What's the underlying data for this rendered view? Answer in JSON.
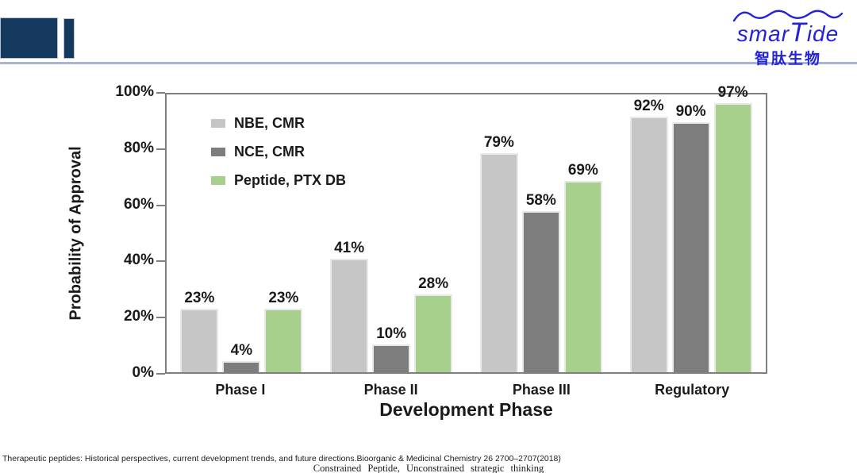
{
  "header": {
    "navy_color": "#15395f",
    "divider_color": "#a6b7cf"
  },
  "logo": {
    "color": "#2222dd",
    "name_part1": "smar",
    "name_part2": "T",
    "name_part3": "ide",
    "chinese": "智肽生物"
  },
  "chart_data": {
    "type": "bar",
    "title": "",
    "xlabel": "Development Phase",
    "ylabel": "Probability of Approval",
    "categories": [
      "Phase I",
      "Phase II",
      "Phase III",
      "Regulatory"
    ],
    "series": [
      {
        "name": "NBE, CMR",
        "values": [
          23,
          41,
          79,
          92
        ],
        "color": "#c6c6c6"
      },
      {
        "name": "NCE, CMR",
        "values": [
          4,
          10,
          58,
          90
        ],
        "color": "#7d7d7d"
      },
      {
        "name": "Peptide, PTX DB",
        "values": [
          23,
          28,
          69,
          97
        ],
        "color": "#a8d08d"
      }
    ],
    "value_label_suffix": "%",
    "ylim": [
      0,
      100
    ],
    "yticks": [
      "0%",
      "20%",
      "40%",
      "60%",
      "80%",
      "100%"
    ],
    "grid": false,
    "legend_position": "top-left-inside"
  },
  "footer": {
    "citation": "Therapeutic peptides: Historical perspectives, current development trends, and future directions.Bioorganic & Medicinal Chemistry 26 2700–2707(2018)",
    "tagline": "Constrained Peptide, Unconstrained strategic thinking"
  }
}
